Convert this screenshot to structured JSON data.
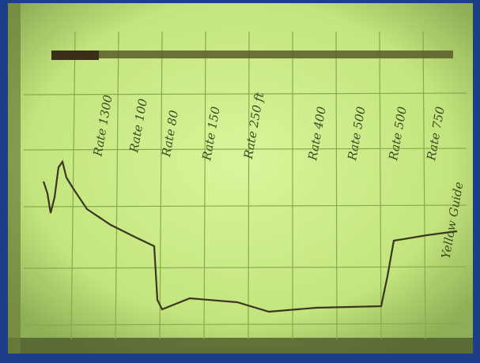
{
  "annotations": [
    "Rate 1300",
    "Rate 100",
    "Rate 80",
    "Rate 150",
    "Rate 250 ft",
    "Rate 400",
    "Rate 500",
    "Rate 500",
    "Rate 750",
    "Yellow Guide"
  ]
}
